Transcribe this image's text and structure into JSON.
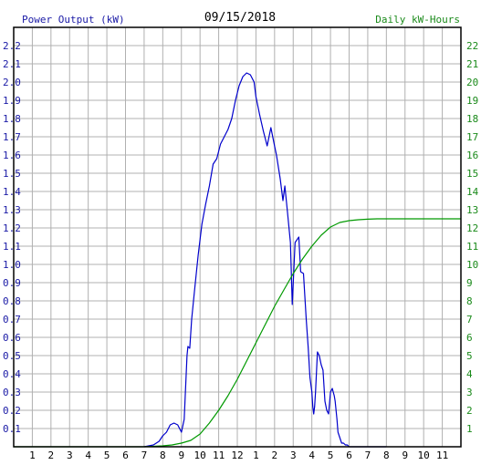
{
  "chart_data": {
    "type": "line",
    "title": "09/15/2018",
    "ylabel_left": "Power Output (kW)",
    "ylabel_right": "Daily kW-Hours",
    "x_tick_labels": [
      "1",
      "2",
      "3",
      "4",
      "5",
      "6",
      "7",
      "8",
      "9",
      "10",
      "11",
      "12",
      "1",
      "2",
      "3",
      "4",
      "5",
      "6",
      "7",
      "8",
      "9",
      "10",
      "11"
    ],
    "x_range_hours": [
      0,
      24
    ],
    "y_left_range": [
      0,
      2.3
    ],
    "y_left_ticks": [
      "0.1",
      "0.2",
      "0.3",
      "0.4",
      "0.5",
      "0.6",
      "0.7",
      "0.8",
      "0.9",
      "1.0",
      "1.1",
      "1.2",
      "1.3",
      "1.4",
      "1.5",
      "1.6",
      "1.7",
      "1.8",
      "1.9",
      "2.0",
      "2.1",
      "2.2"
    ],
    "y_right_range": [
      0,
      23
    ],
    "y_right_ticks": [
      "1",
      "2",
      "3",
      "4",
      "5",
      "6",
      "7",
      "8",
      "9",
      "10",
      "11",
      "12",
      "13",
      "14",
      "15",
      "16",
      "17",
      "18",
      "19",
      "20",
      "21",
      "22"
    ],
    "grid": true,
    "colors": {
      "left_axis_text": "#1a1aa6",
      "right_axis_text": "#1a8a1a",
      "power_line": "#0000cc",
      "energy_line": "#009900",
      "grid": "#b0b0b0",
      "frame": "#000000"
    },
    "series": [
      {
        "axis": "left",
        "hours": [
          7.0,
          7.5,
          7.8,
          8.0,
          8.2,
          8.4,
          8.6,
          8.8,
          9.0,
          9.15,
          9.3,
          9.35,
          9.45,
          9.55,
          9.7,
          9.9,
          10.1,
          10.3,
          10.5,
          10.7,
          10.9,
          11.1,
          11.3,
          11.5,
          11.7,
          11.9,
          12.1,
          12.3,
          12.5,
          12.7,
          12.9,
          13.0,
          13.2,
          13.4,
          13.6,
          13.8,
          14.0,
          14.1,
          14.3,
          14.45,
          14.55,
          14.7,
          14.85,
          14.95,
          15.1,
          15.3,
          15.4,
          15.55,
          15.7,
          15.8,
          15.9,
          16.0,
          16.05,
          16.1,
          16.15,
          16.2,
          16.3,
          16.4,
          16.5,
          16.6,
          16.7,
          16.8,
          16.9,
          17.0,
          17.1,
          17.15,
          17.2,
          17.25,
          17.3,
          17.35,
          17.4,
          17.5,
          17.6,
          17.7,
          17.8,
          17.9,
          18.0,
          18.1,
          18.2,
          18.3,
          18.4,
          18.5,
          18.6,
          18.7,
          18.8,
          18.9,
          19.0,
          19.1,
          19.2,
          19.3,
          19.5,
          19.7,
          19.9,
          20.0
        ],
        "values": [
          0.0,
          0.01,
          0.03,
          0.06,
          0.08,
          0.12,
          0.13,
          0.12,
          0.08,
          0.15,
          0.5,
          0.55,
          0.54,
          0.7,
          0.85,
          1.05,
          1.22,
          1.33,
          1.43,
          1.55,
          1.58,
          1.66,
          1.7,
          1.74,
          1.8,
          1.9,
          1.98,
          2.03,
          2.05,
          2.04,
          2.0,
          1.92,
          1.82,
          1.73,
          1.65,
          1.75,
          1.65,
          1.6,
          1.47,
          1.35,
          1.43,
          1.28,
          1.12,
          0.78,
          1.12,
          1.15,
          0.96,
          0.95,
          0.7,
          0.55,
          0.38,
          0.3,
          0.22,
          0.18,
          0.22,
          0.3,
          0.52,
          0.5,
          0.45,
          0.42,
          0.25,
          0.2,
          0.18,
          0.3,
          0.32,
          0.3,
          0.28,
          0.25,
          0.2,
          0.15,
          0.08,
          0.05,
          0.02,
          0.02,
          0.01,
          0.01,
          0.0,
          0.0,
          0.0,
          0.0,
          0.0,
          0.0,
          0.0,
          0.0,
          0.0,
          0.0,
          0.0,
          0.0,
          0.0,
          0.0,
          0.0,
          0.0,
          0.0,
          0.0
        ]
      },
      {
        "axis": "right",
        "hours": [
          0,
          7.0,
          8.0,
          8.5,
          9.0,
          9.5,
          10.0,
          10.5,
          11.0,
          11.5,
          12.0,
          12.5,
          13.0,
          13.5,
          14.0,
          14.5,
          15.0,
          15.5,
          16.0,
          16.5,
          17.0,
          17.5,
          18.0,
          18.5,
          19.0,
          19.5,
          20.0,
          21.0,
          22.0,
          23.0,
          24.0
        ],
        "values": [
          0,
          0,
          0.05,
          0.1,
          0.2,
          0.35,
          0.7,
          1.3,
          2.0,
          2.8,
          3.7,
          4.7,
          5.7,
          6.7,
          7.7,
          8.6,
          9.5,
          10.3,
          11.0,
          11.6,
          12.05,
          12.3,
          12.4,
          12.45,
          12.48,
          12.5,
          12.5,
          12.5,
          12.5,
          12.5,
          12.5
        ]
      }
    ]
  }
}
